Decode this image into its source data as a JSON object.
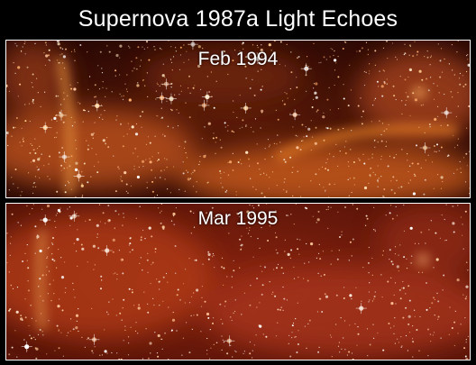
{
  "title": "Supernova 1987a Light Echoes",
  "panels": [
    {
      "label": "Feb 1994"
    },
    {
      "label": "Mar 1995"
    }
  ],
  "colors": {
    "background": "#000000",
    "frame": "#ffffff",
    "nebula_top": "#7a2a0c",
    "nebula_bottom": "#9a2a10",
    "glow": "#e07020"
  }
}
